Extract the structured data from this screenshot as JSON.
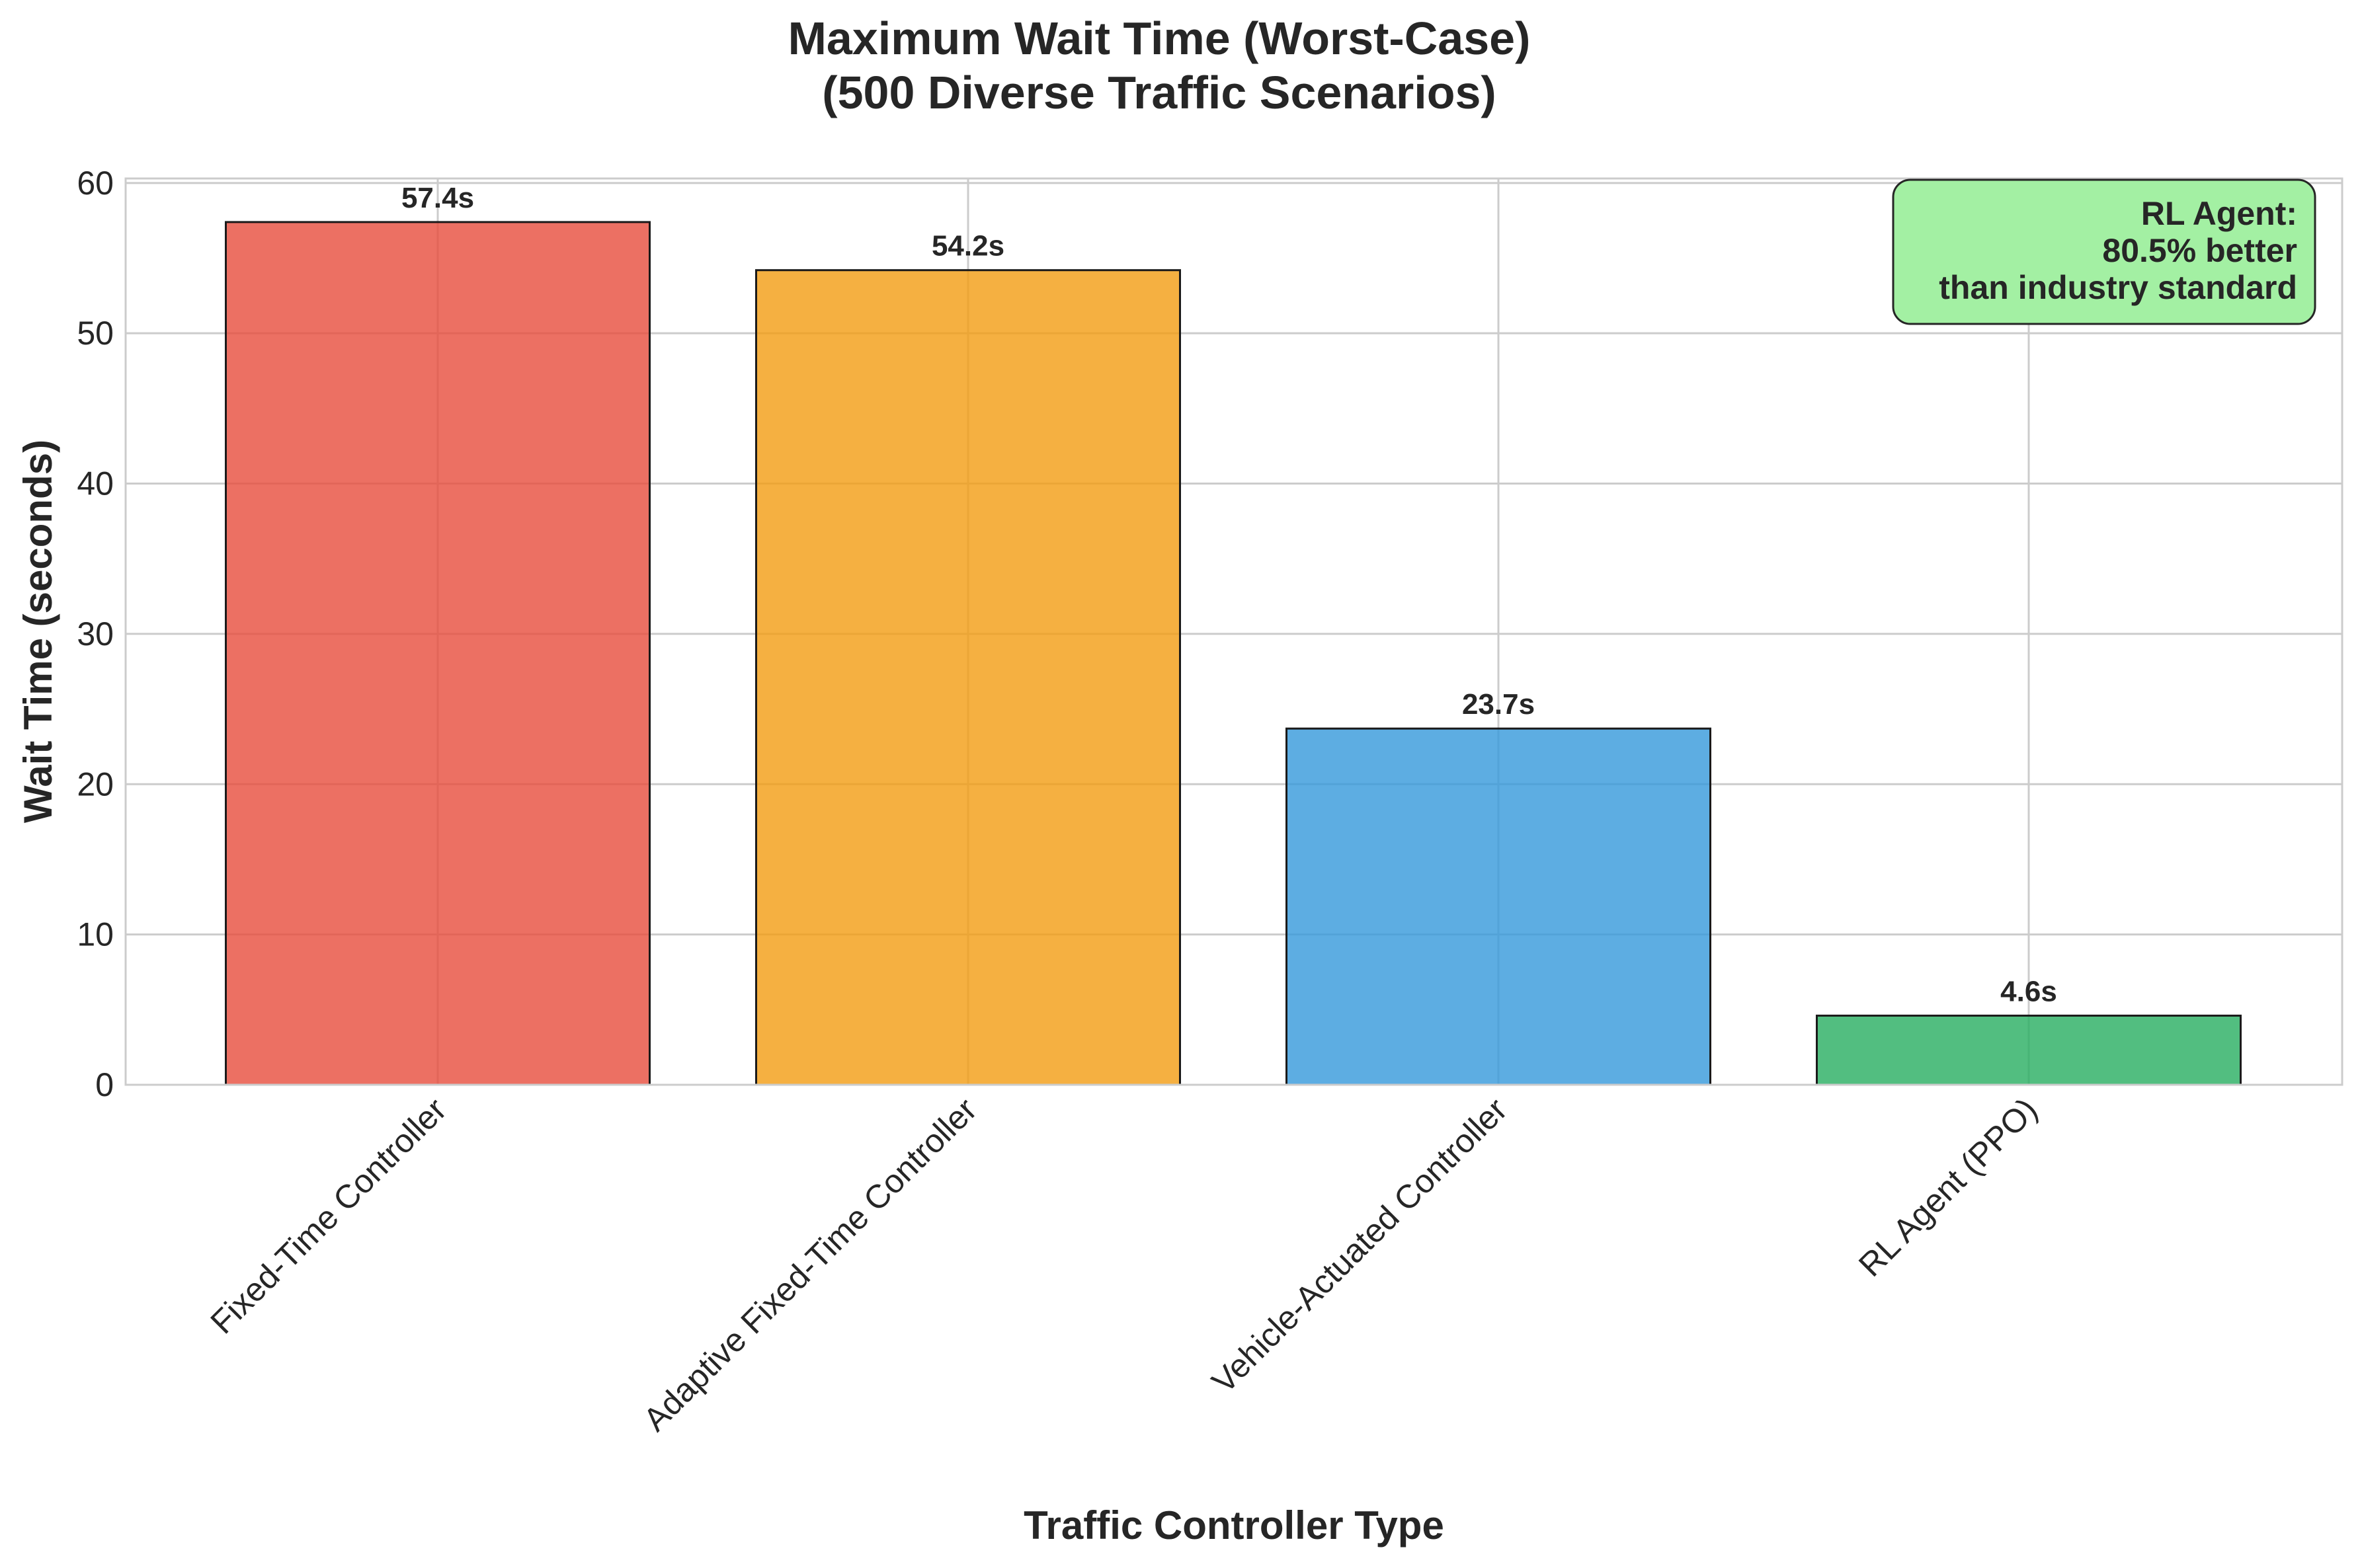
{
  "chart_data": {
    "type": "bar",
    "title": [
      "Maximum Wait Time (Worst-Case)",
      "(500 Diverse Traffic Scenarios)"
    ],
    "xlabel": "Traffic Controller Type",
    "ylabel": "Wait Time (seconds)",
    "categories": [
      "Fixed-Time Controller",
      "Adaptive Fixed-Time Controller",
      "Vehicle-Actuated Controller",
      "RL Agent (PPO)"
    ],
    "values": [
      57.4,
      54.2,
      23.7,
      4.6
    ],
    "data_labels": [
      "57.4s",
      "54.2s",
      "23.7s",
      "4.6s"
    ],
    "colors": [
      "#e74c3c",
      "#f39c12",
      "#3498db",
      "#27ae60"
    ],
    "ylim": [
      0,
      60.3
    ],
    "yticks": [
      0,
      10,
      20,
      30,
      40,
      50,
      60
    ],
    "grid": true,
    "annotation": {
      "lines": [
        "RL Agent:",
        "80.5% better",
        "than industry standard"
      ],
      "position": "top-right",
      "background": "#90ee90"
    }
  }
}
